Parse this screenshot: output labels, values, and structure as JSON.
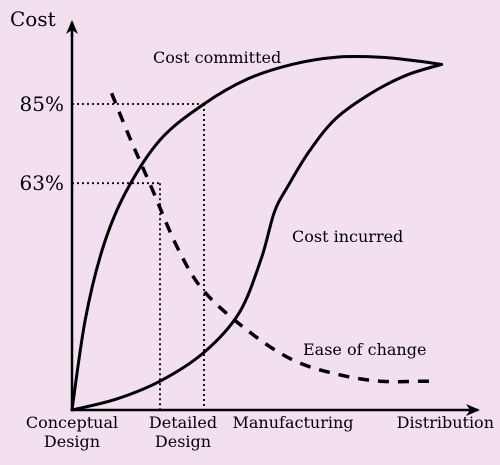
{
  "chart_data": {
    "type": "line",
    "ylabel": "Cost",
    "y_ticks": [
      {
        "label": "85%",
        "value": 85
      },
      {
        "label": "63%",
        "value": 63
      }
    ],
    "categories": [
      {
        "lines": [
          "Conceptual",
          "Design"
        ],
        "x": 0
      },
      {
        "lines": [
          "Detailed",
          "Design"
        ],
        "x": 1
      },
      {
        "lines": [
          "Manufacturing"
        ],
        "x": 2
      },
      {
        "lines": [
          "Distribution"
        ],
        "x": 4
      }
    ],
    "xlim": [
      0,
      4.6
    ],
    "ylim": [
      0,
      100
    ],
    "series": [
      {
        "name": "Cost committed",
        "style": "solid",
        "x": [
          0,
          0.15,
          0.35,
          0.6,
          1.0,
          1.5,
          2.0,
          2.5,
          3.0,
          3.5,
          3.9,
          4.2
        ],
        "y": [
          0,
          25,
          45,
          60,
          75,
          85,
          92,
          96,
          98,
          98,
          97,
          96
        ]
      },
      {
        "name": "Cost incurred",
        "style": "solid",
        "x": [
          0,
          0.5,
          1.0,
          1.5,
          1.9,
          2.15,
          2.3,
          2.45,
          2.7,
          3.0,
          3.4,
          3.8,
          4.2
        ],
        "y": [
          0,
          3,
          8,
          16,
          27,
          42,
          55,
          62,
          72,
          81,
          88,
          93,
          96
        ]
      },
      {
        "name": "Ease of change",
        "style": "dashed",
        "x": [
          0.45,
          0.65,
          0.9,
          1.2,
          1.5,
          2.0,
          2.5,
          3.0,
          3.5,
          4.0,
          4.1
        ],
        "y": [
          88,
          76,
          62,
          45,
          33,
          22,
          14,
          10,
          8,
          8,
          8
        ]
      }
    ],
    "reference_lines": [
      {
        "y": 85,
        "x": 1.5
      },
      {
        "y": 63,
        "x": 1.0
      }
    ],
    "grid": false
  }
}
